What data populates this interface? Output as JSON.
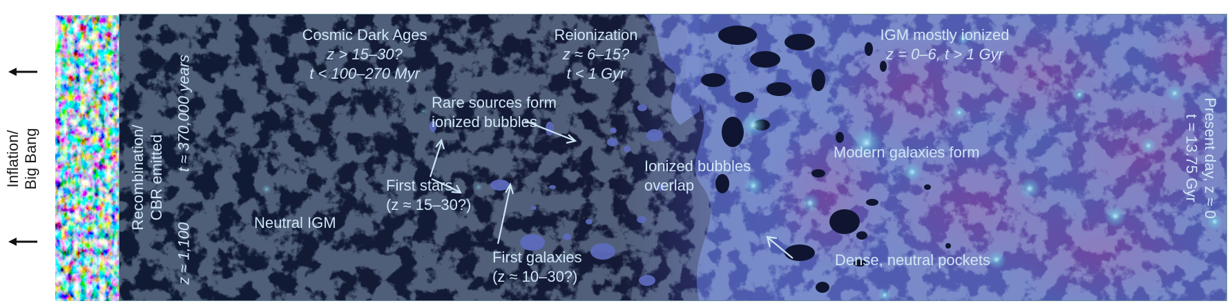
{
  "left_side": {
    "label_line1": "Inflation/",
    "label_line2": "Big Bang"
  },
  "recombination": {
    "line1": "Recombination/",
    "line2": "CBR emitted",
    "time": "t ≈ 370,000 years",
    "redshift": "z ≈ 1,100"
  },
  "dark_ages": {
    "title": "Cosmic Dark Ages",
    "redshift": "z > 15–30?",
    "time": "t < 100–270 Myr"
  },
  "reionization": {
    "title": "Reionization",
    "redshift": "z ≈ 6–15?",
    "time": "t < 1 Gyr"
  },
  "ionized": {
    "title": "IGM mostly ionized",
    "range": "z = 0–6, t > 1 Gyr"
  },
  "present": {
    "line1": "Present day, z ≈ 0",
    "line2": "t = 13.75 Gyr"
  },
  "annotations": {
    "rare_sources_line1": "Rare sources form",
    "rare_sources_line2": "ionized bubbles",
    "first_stars_line1": "First stars",
    "first_stars_line2": "(z ≈ 15–30?)",
    "neutral_igm": "Neutral IGM",
    "first_galaxies_line1": "First galaxies",
    "first_galaxies_line2": "(z ≈ 10–30?)",
    "bubbles_overlap_line1": "Ionized bubbles",
    "bubbles_overlap_line2": "overlap",
    "modern_galaxies": "Modern galaxies form",
    "dense_pockets": "Dense, neutral pockets"
  },
  "colors": {
    "dark_background": "#141a33",
    "ionized_purple": "#5a3a8c",
    "bubble_blue": "#5f6fc4",
    "label_color": "#cfe6f4"
  }
}
